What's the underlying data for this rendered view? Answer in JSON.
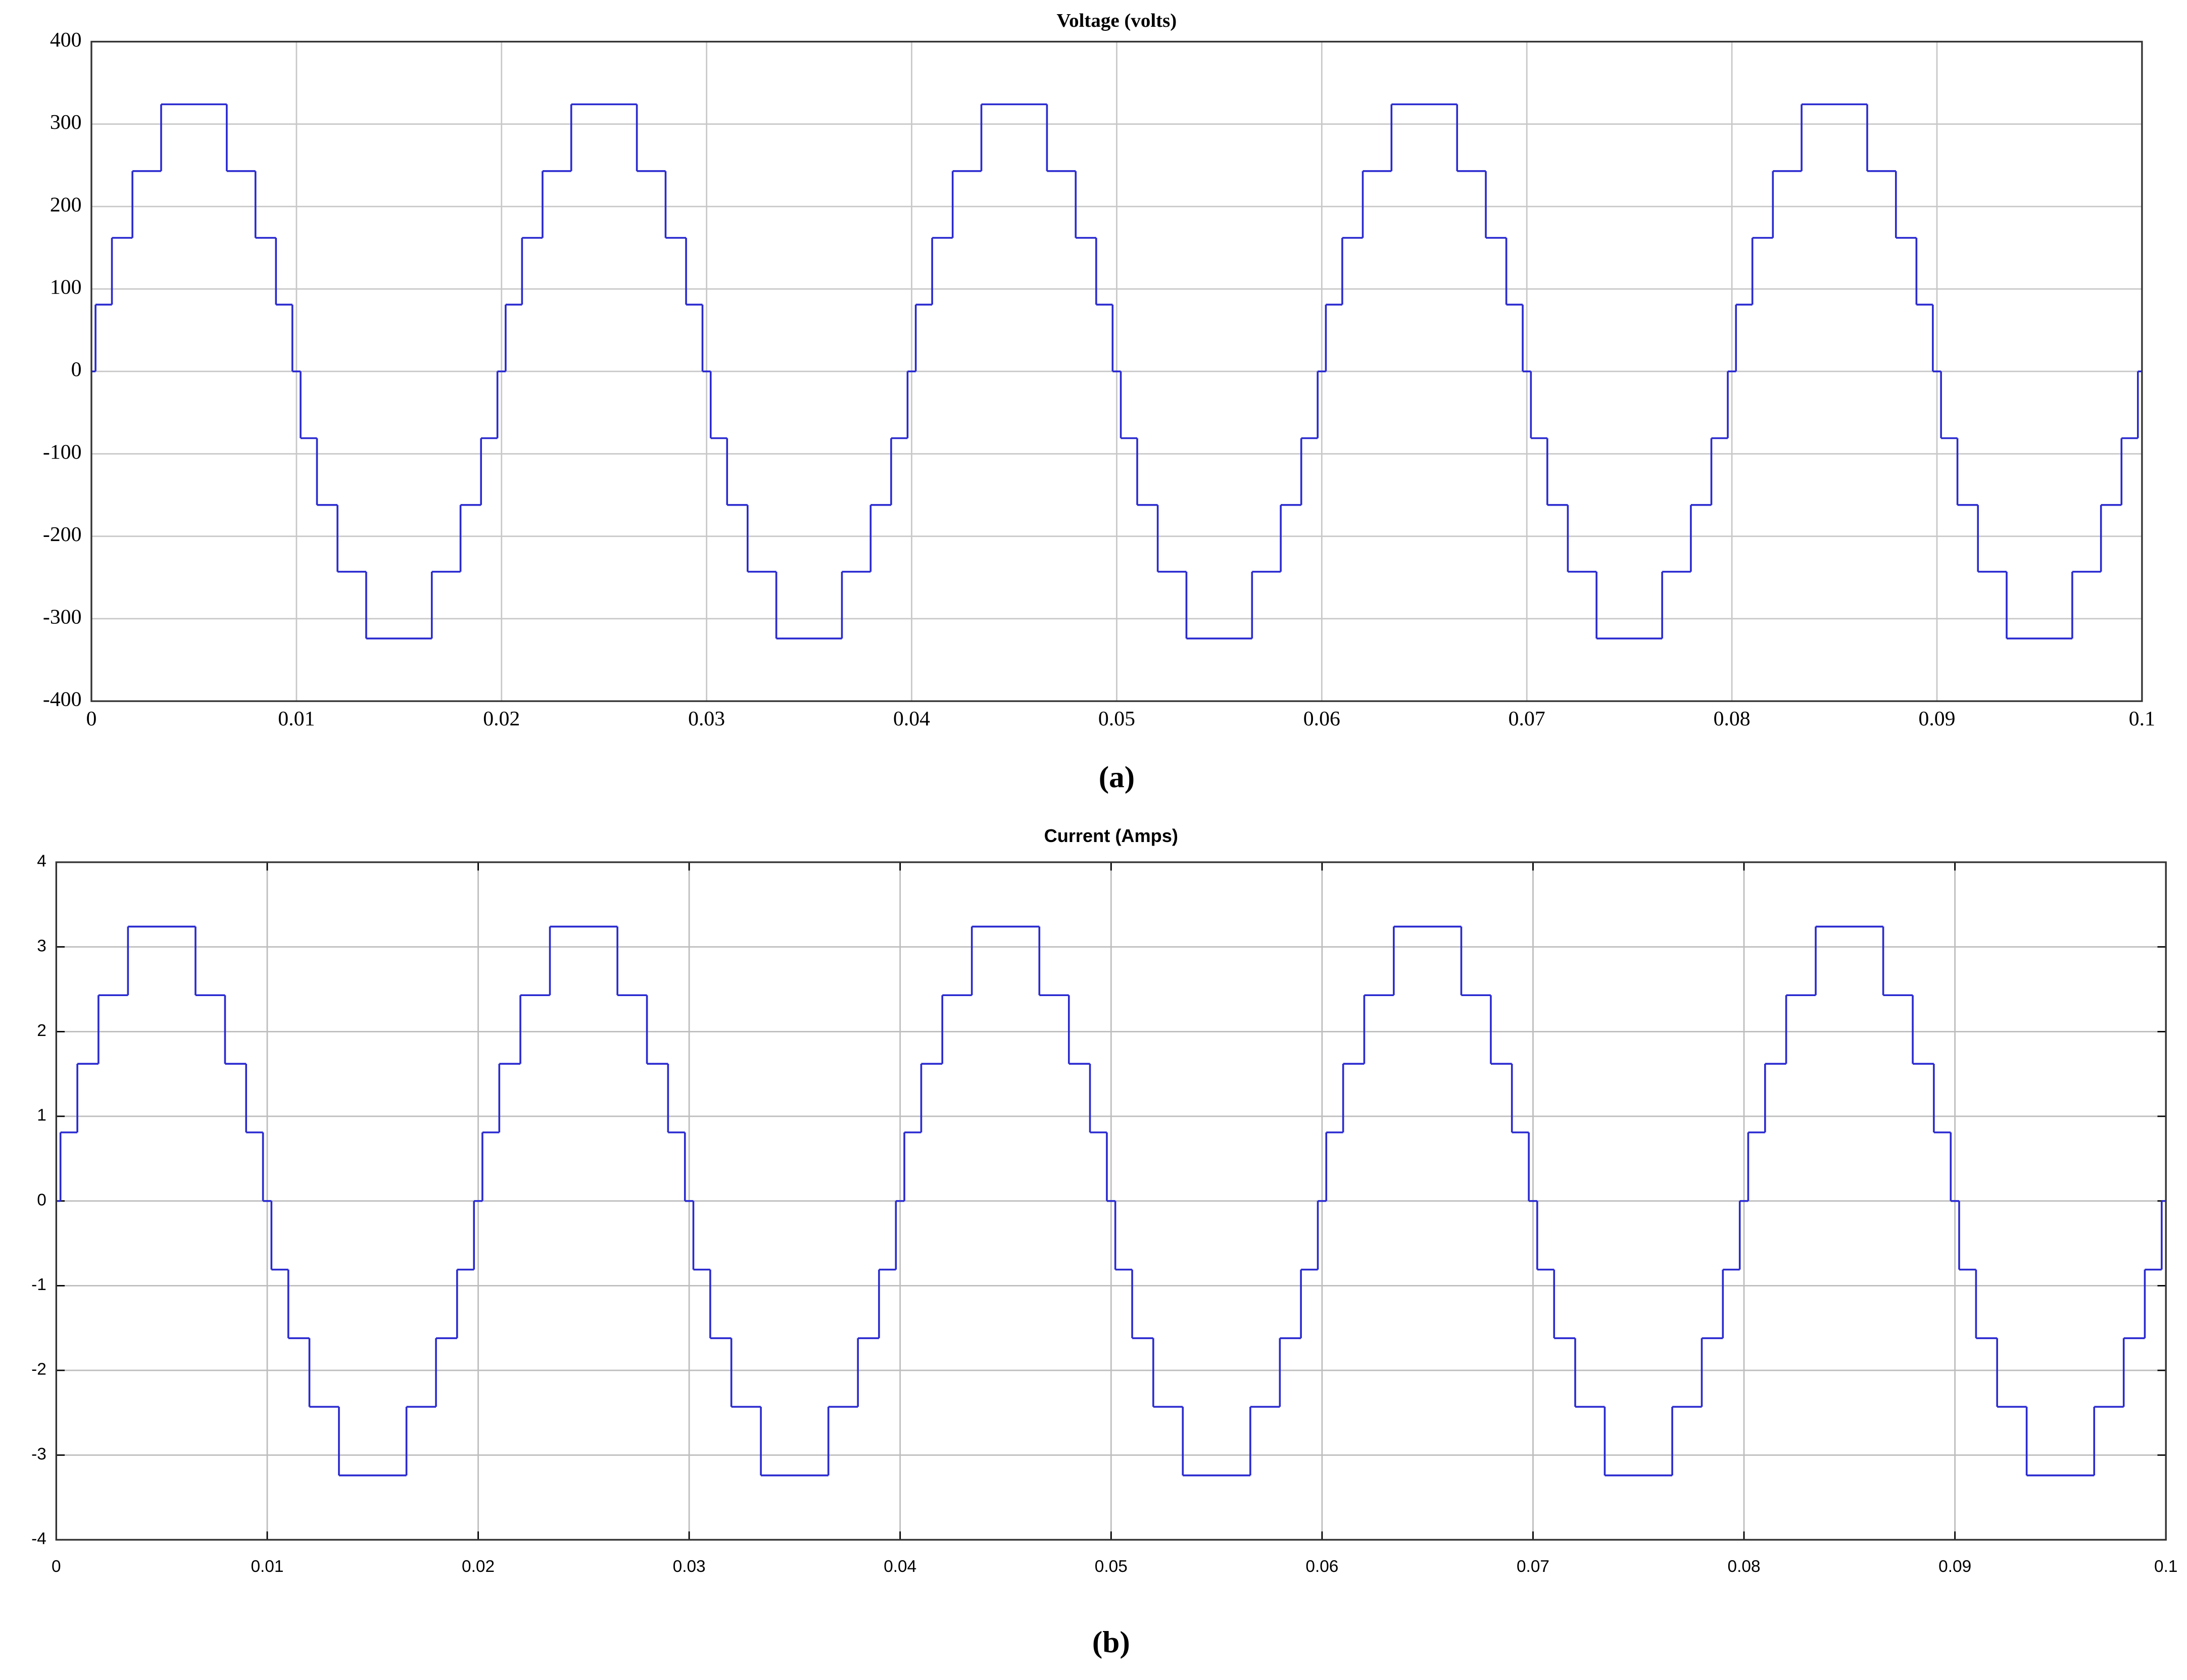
{
  "chart_data": [
    {
      "type": "line",
      "title": "Voltage (volts)",
      "caption": "(a)",
      "step": "post",
      "grid": true,
      "x": [
        0,
        0.0002,
        0.001,
        0.002,
        0.0034,
        0.0066,
        0.008,
        0.009,
        0.0098,
        0.0102,
        0.011,
        0.012,
        0.0134,
        0.0166,
        0.018,
        0.019,
        0.0198,
        0.02,
        0.0202,
        0.021,
        0.022,
        0.0234,
        0.0266,
        0.028,
        0.029,
        0.0298,
        0.0302,
        0.031,
        0.032,
        0.0334,
        0.0366,
        0.038,
        0.039,
        0.0398,
        0.04,
        0.0402,
        0.041,
        0.042,
        0.0434,
        0.0466,
        0.048,
        0.049,
        0.0498,
        0.0502,
        0.051,
        0.052,
        0.0534,
        0.0566,
        0.058,
        0.059,
        0.0598,
        0.06,
        0.0602,
        0.061,
        0.062,
        0.0634,
        0.0666,
        0.068,
        0.069,
        0.0698,
        0.0702,
        0.071,
        0.072,
        0.0734,
        0.0766,
        0.078,
        0.079,
        0.0798,
        0.08,
        0.0802,
        0.081,
        0.082,
        0.0834,
        0.0866,
        0.088,
        0.089,
        0.0898,
        0.0902,
        0.091,
        0.092,
        0.0934,
        0.0966,
        0.098,
        0.099,
        0.0998,
        0.1
      ],
      "series": [
        {
          "name": "Voltage",
          "color": "#2a2ad0",
          "values": [
            0,
            81,
            162,
            243,
            324,
            243,
            162,
            81,
            0,
            -81,
            -162,
            -243,
            -324,
            -243,
            -162,
            -81,
            0,
            0,
            81,
            162,
            243,
            324,
            243,
            162,
            81,
            0,
            -81,
            -162,
            -243,
            -324,
            -243,
            -162,
            -81,
            0,
            0,
            81,
            162,
            243,
            324,
            243,
            162,
            81,
            0,
            -81,
            -162,
            -243,
            -324,
            -243,
            -162,
            -81,
            0,
            0,
            81,
            162,
            243,
            324,
            243,
            162,
            81,
            0,
            -81,
            -162,
            -243,
            -324,
            -243,
            -162,
            -81,
            0,
            0,
            81,
            162,
            243,
            324,
            243,
            162,
            81,
            0,
            -81,
            -162,
            -243,
            -324,
            -243,
            -162,
            -81,
            0,
            0
          ]
        }
      ],
      "xlim": [
        0,
        0.1
      ],
      "xticks": [
        0,
        0.01,
        0.02,
        0.03,
        0.04,
        0.05,
        0.06,
        0.07,
        0.08,
        0.09,
        0.1
      ],
      "ylim": [
        -400,
        400
      ],
      "yticks": [
        -400,
        -300,
        -200,
        -100,
        0,
        100,
        200,
        300,
        400
      ]
    },
    {
      "type": "line",
      "title": "Current (Amps)",
      "caption": "(b)",
      "step": "post",
      "grid": true,
      "x": [
        0,
        0.0002,
        0.001,
        0.002,
        0.0034,
        0.0066,
        0.008,
        0.009,
        0.0098,
        0.0102,
        0.011,
        0.012,
        0.0134,
        0.0166,
        0.018,
        0.019,
        0.0198,
        0.02,
        0.0202,
        0.021,
        0.022,
        0.0234,
        0.0266,
        0.028,
        0.029,
        0.0298,
        0.0302,
        0.031,
        0.032,
        0.0334,
        0.0366,
        0.038,
        0.039,
        0.0398,
        0.04,
        0.0402,
        0.041,
        0.042,
        0.0434,
        0.0466,
        0.048,
        0.049,
        0.0498,
        0.0502,
        0.051,
        0.052,
        0.0534,
        0.0566,
        0.058,
        0.059,
        0.0598,
        0.06,
        0.0602,
        0.061,
        0.062,
        0.0634,
        0.0666,
        0.068,
        0.069,
        0.0698,
        0.0702,
        0.071,
        0.072,
        0.0734,
        0.0766,
        0.078,
        0.079,
        0.0798,
        0.08,
        0.0802,
        0.081,
        0.082,
        0.0834,
        0.0866,
        0.088,
        0.089,
        0.0898,
        0.0902,
        0.091,
        0.092,
        0.0934,
        0.0966,
        0.098,
        0.099,
        0.0998,
        0.1
      ],
      "series": [
        {
          "name": "Current",
          "color": "#2a2ad0",
          "values": [
            0,
            0.81,
            1.62,
            2.43,
            3.24,
            2.43,
            1.62,
            0.81,
            0,
            -0.81,
            -1.62,
            -2.43,
            -3.24,
            -2.43,
            -1.62,
            -0.81,
            0,
            0,
            0.81,
            1.62,
            2.43,
            3.24,
            2.43,
            1.62,
            0.81,
            0,
            -0.81,
            -1.62,
            -2.43,
            -3.24,
            -2.43,
            -1.62,
            -0.81,
            0,
            0,
            0.81,
            1.62,
            2.43,
            3.24,
            2.43,
            1.62,
            0.81,
            0,
            -0.81,
            -1.62,
            -2.43,
            -3.24,
            -2.43,
            -1.62,
            -0.81,
            0,
            0,
            0.81,
            1.62,
            2.43,
            3.24,
            2.43,
            1.62,
            0.81,
            0,
            -0.81,
            -1.62,
            -2.43,
            -3.24,
            -2.43,
            -1.62,
            -0.81,
            0,
            0,
            0.81,
            1.62,
            2.43,
            3.24,
            2.43,
            1.62,
            0.81,
            0,
            -0.81,
            -1.62,
            -2.43,
            -3.24,
            -2.43,
            -1.62,
            -0.81,
            0,
            0
          ]
        }
      ],
      "xlim": [
        0,
        0.1
      ],
      "xticks": [
        0,
        0.01,
        0.02,
        0.03,
        0.04,
        0.05,
        0.06,
        0.07,
        0.08,
        0.09,
        0.1
      ],
      "ylim": [
        -4,
        4
      ],
      "yticks": [
        -4,
        -3,
        -2,
        -1,
        0,
        1,
        2,
        3,
        4
      ]
    }
  ]
}
